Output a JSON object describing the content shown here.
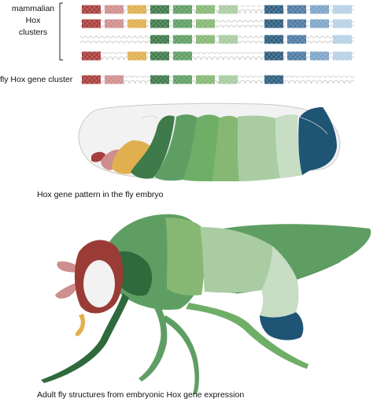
{
  "labels": {
    "mammalian_line1": "mammalian",
    "mammalian_line2": "Hox",
    "mammalian_line3": "clusters",
    "fly_cluster": "fly Hox gene cluster",
    "embryo_caption": "Hox gene pattern in the fly embryo",
    "adult_caption": "Adult fly structures from embryonic Hox gene expression"
  },
  "gene_colors": [
    "#a83f3d",
    "#cf8e8e",
    "#e0b04f",
    "#3e7a4a",
    "#5f9e63",
    "#86b873",
    "#a9cca2",
    "#c7ddc4",
    "#2d5e80",
    "#4e7aa3",
    "#7da4c8",
    "#b6d1e6"
  ],
  "clusters": {
    "mammalian": [
      [
        true,
        true,
        true,
        true,
        true,
        true,
        true,
        false,
        true,
        true,
        true,
        true
      ],
      [
        true,
        true,
        true,
        true,
        true,
        true,
        false,
        false,
        true,
        true,
        true,
        true
      ],
      [
        false,
        false,
        false,
        true,
        true,
        true,
        true,
        false,
        true,
        true,
        false,
        true
      ],
      [
        true,
        false,
        true,
        true,
        true,
        false,
        false,
        false,
        true,
        true,
        true,
        true
      ]
    ],
    "fly": [
      true,
      true,
      false,
      true,
      true,
      true,
      true,
      false,
      true,
      false,
      false,
      false
    ]
  },
  "colors": {
    "embryo_outline": "#c9c9c9",
    "embryo_head": "#f2f2f2",
    "dna_gray": "#d5d5d5",
    "eye_red": "#9b3b36",
    "wing_green": "#5f9e63",
    "body_green": "#6fae66"
  }
}
